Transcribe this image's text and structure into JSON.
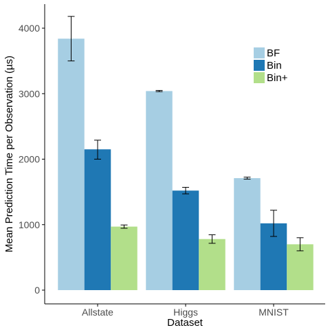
{
  "chart_data": {
    "type": "bar",
    "xlabel": "Dataset",
    "ylabel": "Mean Prediction Time per Observation (µs)",
    "categories": [
      "Allstate",
      "Higgs",
      "MNIST"
    ],
    "ylim": [
      0,
      4300
    ],
    "yticks": [
      0,
      1000,
      2000,
      3000,
      4000
    ],
    "grid": false,
    "legend_position": "top-right",
    "series": [
      {
        "name": "BF",
        "color": "#a6cee3",
        "values": [
          3840,
          3040,
          1710
        ],
        "err_low": [
          3500,
          3030,
          1695
        ],
        "err_high": [
          4180,
          3050,
          1725
        ]
      },
      {
        "name": "Bin",
        "color": "#1f78b4",
        "values": [
          2150,
          1520,
          1020
        ],
        "err_low": [
          2000,
          1470,
          820
        ],
        "err_high": [
          2290,
          1570,
          1220
        ]
      },
      {
        "name": "Bin+",
        "color": "#b2df8a",
        "values": [
          970,
          780,
          700
        ],
        "err_low": [
          945,
          715,
          600
        ],
        "err_high": [
          995,
          845,
          800
        ]
      }
    ]
  }
}
